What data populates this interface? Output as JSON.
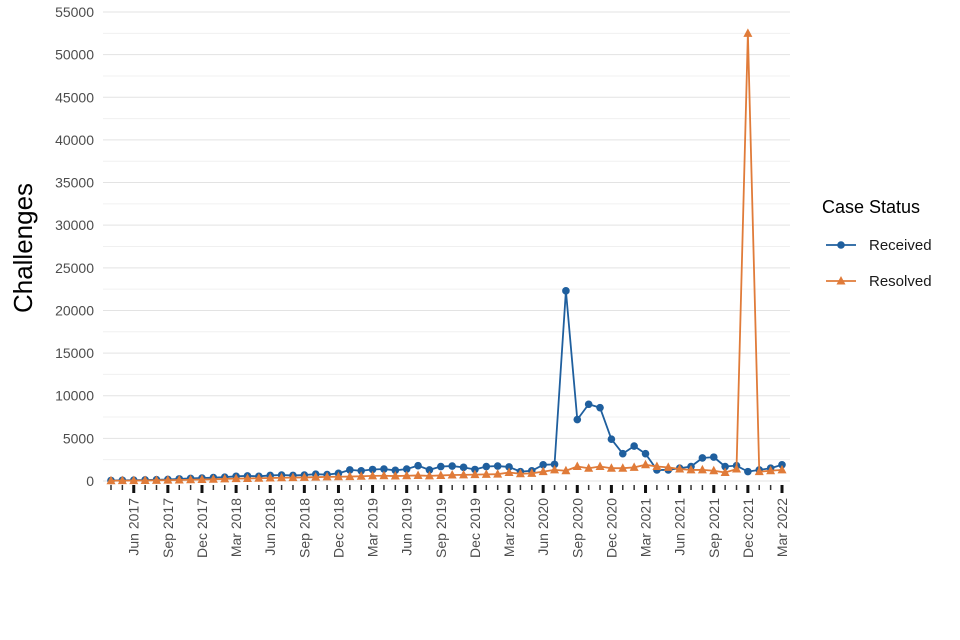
{
  "chart_data": {
    "type": "line",
    "ylabel": "Challenges",
    "xlabel": "",
    "ylim": [
      0,
      55000
    ],
    "yticks": [
      0,
      5000,
      10000,
      15000,
      20000,
      25000,
      30000,
      35000,
      40000,
      45000,
      50000,
      55000
    ],
    "grid": true,
    "legend_position": "right",
    "legend_title": "Case Status",
    "x": [
      "2017-04",
      "2017-05",
      "2017-06",
      "2017-07",
      "2017-08",
      "2017-09",
      "2017-10",
      "2017-11",
      "2017-12",
      "2018-01",
      "2018-02",
      "2018-03",
      "2018-04",
      "2018-05",
      "2018-06",
      "2018-07",
      "2018-08",
      "2018-09",
      "2018-10",
      "2018-11",
      "2018-12",
      "2019-01",
      "2019-02",
      "2019-03",
      "2019-04",
      "2019-05",
      "2019-06",
      "2019-07",
      "2019-08",
      "2019-09",
      "2019-10",
      "2019-11",
      "2019-12",
      "2020-01",
      "2020-02",
      "2020-03",
      "2020-04",
      "2020-05",
      "2020-06",
      "2020-07",
      "2020-08",
      "2020-09",
      "2020-10",
      "2020-11",
      "2020-12",
      "2021-01",
      "2021-02",
      "2021-03",
      "2021-04",
      "2021-05",
      "2021-06",
      "2021-07",
      "2021-08",
      "2021-09",
      "2021-10",
      "2021-11",
      "2021-12",
      "2022-01",
      "2022-02",
      "2022-03"
    ],
    "x_tick_labels": [
      "Jun 2017",
      "Sep 2017",
      "Dec 2017",
      "Mar 2018",
      "Jun 2018",
      "Sep 2018",
      "Dec 2018",
      "Mar 2019",
      "Jun 2019",
      "Sep 2019",
      "Dec 2019",
      "Mar 2020",
      "Jun 2020",
      "Sep 2020",
      "Dec 2020",
      "Mar 2021",
      "Jun 2021",
      "Sep 2021",
      "Dec 2021",
      "Mar 2022"
    ],
    "x_tick_positions": [
      "2017-06",
      "2017-09",
      "2017-12",
      "2018-03",
      "2018-06",
      "2018-09",
      "2018-12",
      "2019-03",
      "2019-06",
      "2019-09",
      "2019-12",
      "2020-03",
      "2020-06",
      "2020-09",
      "2020-12",
      "2021-03",
      "2021-06",
      "2021-09",
      "2021-12",
      "2022-03"
    ],
    "series": [
      {
        "name": "Received",
        "color": "#1f5f9e",
        "marker": "circle",
        "values": [
          60,
          80,
          100,
          120,
          150,
          180,
          250,
          300,
          350,
          400,
          450,
          550,
          600,
          550,
          650,
          700,
          650,
          700,
          800,
          750,
          900,
          1300,
          1200,
          1350,
          1400,
          1250,
          1400,
          1800,
          1300,
          1700,
          1750,
          1600,
          1350,
          1700,
          1750,
          1650,
          1100,
          1200,
          1900,
          1950,
          22300,
          7200,
          9000,
          8600,
          4900,
          3200,
          4100,
          3200,
          1300,
          1300,
          1500,
          1700,
          2700,
          2800,
          1700,
          1800,
          1100,
          1300,
          1500,
          1900
        ]
      },
      {
        "name": "Resolved",
        "color": "#e07b39",
        "marker": "triangle",
        "values": [
          30,
          40,
          50,
          60,
          80,
          100,
          120,
          150,
          180,
          200,
          250,
          280,
          300,
          320,
          350,
          380,
          400,
          420,
          450,
          480,
          500,
          520,
          560,
          600,
          620,
          580,
          620,
          650,
          600,
          650,
          700,
          720,
          750,
          780,
          800,
          1000,
          850,
          900,
          1100,
          1300,
          1200,
          1700,
          1500,
          1700,
          1500,
          1500,
          1600,
          1900,
          1700,
          1600,
          1400,
          1300,
          1300,
          1200,
          1000,
          1400,
          52500,
          1100,
          1200,
          1300
        ]
      }
    ]
  }
}
